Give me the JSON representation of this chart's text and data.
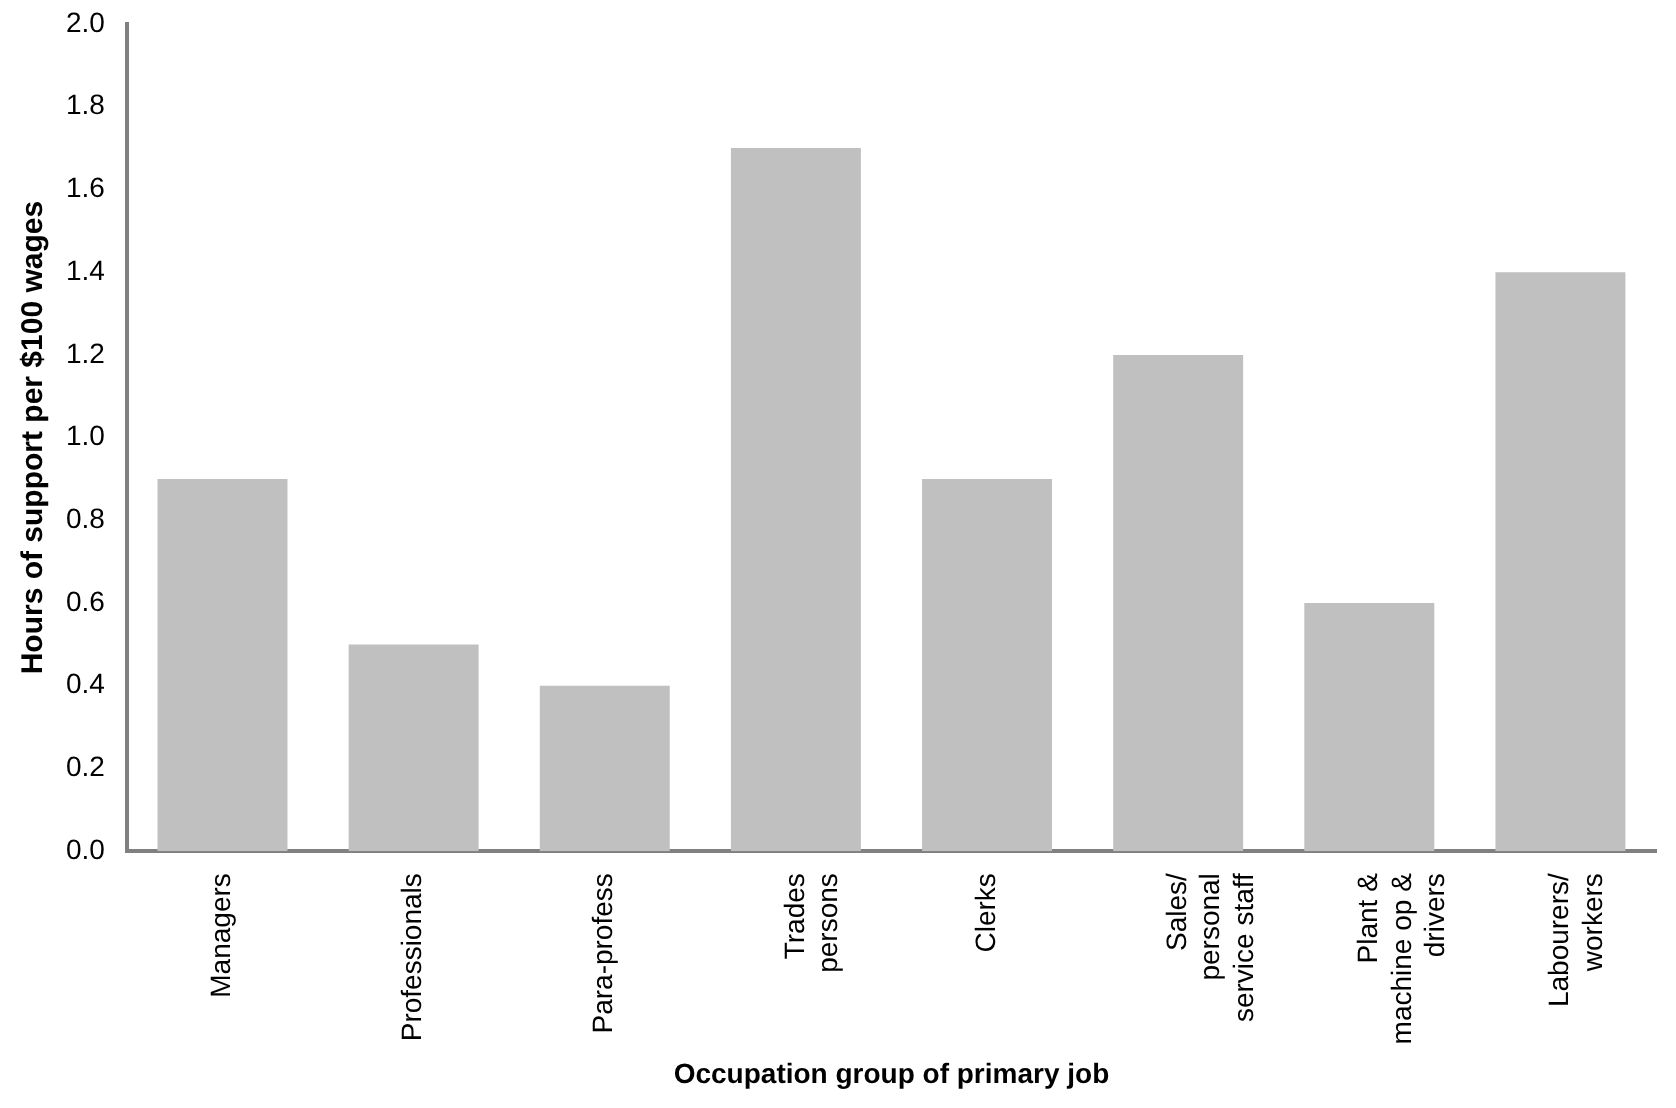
{
  "chart_data": {
    "type": "bar",
    "xlabel": "Occupation group of primary job",
    "ylabel": "Hours of support per $100 wages",
    "categories": [
      "Managers",
      "Professionals",
      "Para-profess",
      "Trades persons",
      "Clerks",
      "Sales/ personal service staff",
      "Plant & machine op & drivers",
      "Labourers/ workers"
    ],
    "values": [
      0.9,
      0.5,
      0.4,
      1.7,
      0.9,
      1.2,
      0.6,
      1.4
    ],
    "color": "#c0c0c0",
    "ylim": [
      0,
      2
    ],
    "yticks": [
      {
        "value": 0,
        "label": "0.0"
      },
      {
        "value": 0.2,
        "label": "0.2"
      },
      {
        "value": 0.4,
        "label": "0.4"
      },
      {
        "value": 0.6,
        "label": "0.6"
      },
      {
        "value": 0.8,
        "label": "0.8"
      },
      {
        "value": 1,
        "label": "1.0"
      },
      {
        "value": 1.2,
        "label": "1.2"
      },
      {
        "value": 1.4,
        "label": "1.4"
      },
      {
        "value": 1.6,
        "label": "1.6"
      },
      {
        "value": 1.8,
        "label": "1.8"
      },
      {
        "value": 2,
        "label": "2.0"
      }
    ],
    "grid": false
  }
}
